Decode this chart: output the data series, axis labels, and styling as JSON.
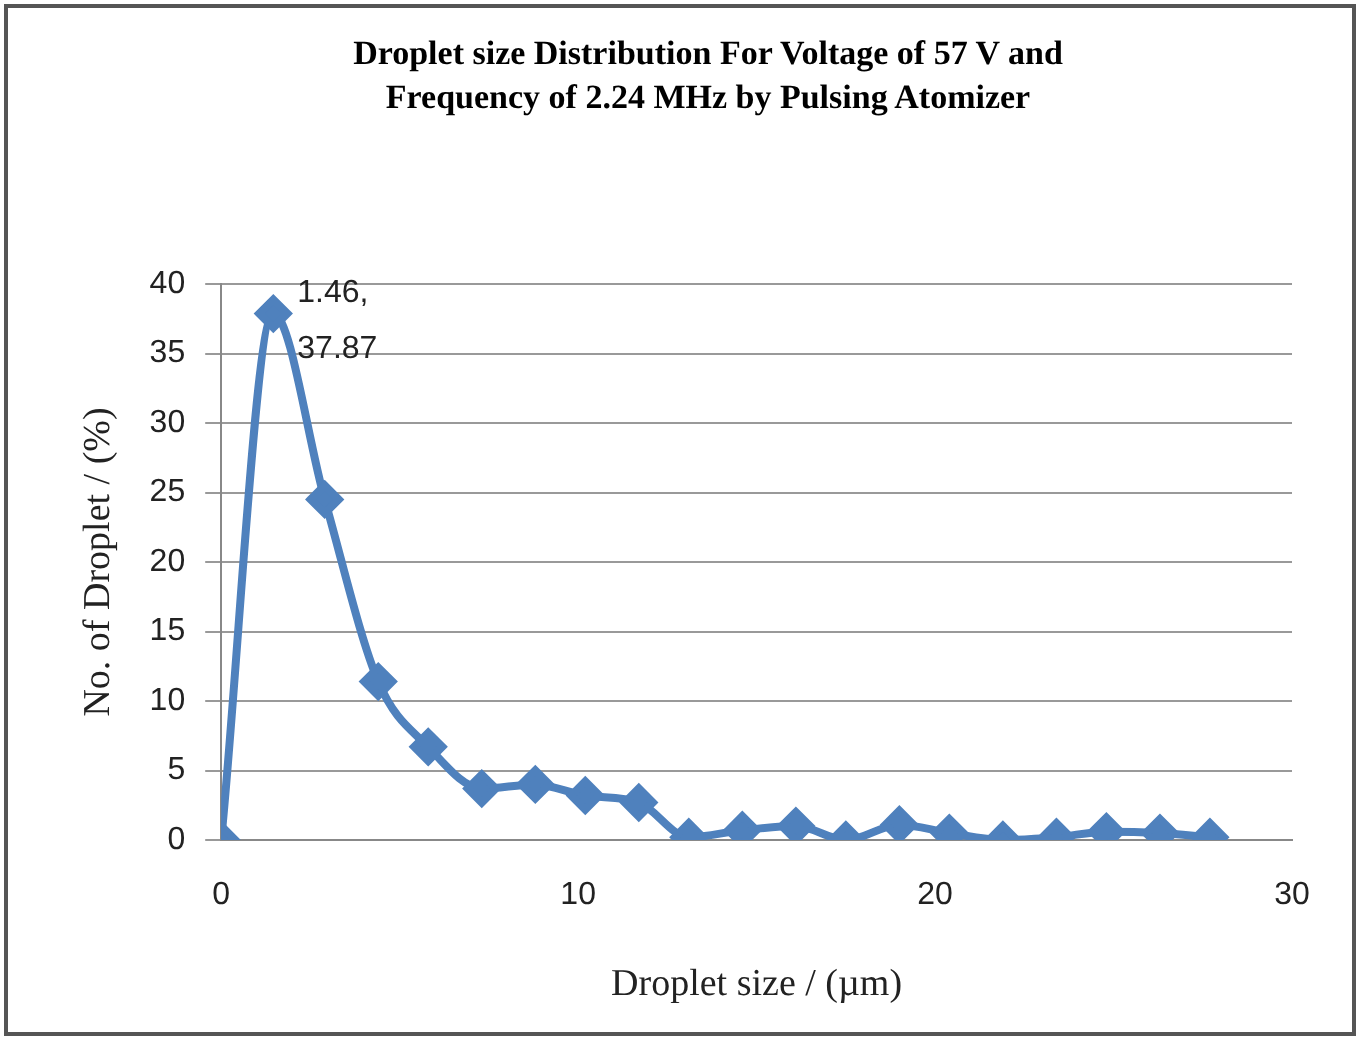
{
  "chart_data": {
    "type": "line",
    "title": "Droplet size Distribution For Voltage of 57 V and Frequency of 2.24 MHz by Pulsing Atomizer",
    "xlabel": "Droplet size / (µm)",
    "ylabel": "No. of Droplet / (%)",
    "x": [
      0,
      1.46,
      2.9,
      4.4,
      5.8,
      7.3,
      8.8,
      10.2,
      11.7,
      13.1,
      14.6,
      16.1,
      17.5,
      19.0,
      20.4,
      21.9,
      23.4,
      24.8,
      26.3,
      27.7
    ],
    "series": [
      {
        "color": "#4f81bd",
        "values": [
          0,
          37.87,
          24.5,
          11.4,
          6.7,
          3.7,
          4.0,
          3.2,
          2.7,
          0.2,
          0.7,
          1.0,
          0,
          1.1,
          0.5,
          0,
          0.2,
          0.6,
          0.5,
          0.2
        ]
      }
    ],
    "xlim": [
      0,
      30
    ],
    "xticks": [
      0,
      10,
      20,
      30
    ],
    "ylim": [
      0,
      40
    ],
    "yticks": [
      0,
      5,
      10,
      15,
      20,
      25,
      30,
      35,
      40
    ],
    "annotations": [
      {
        "text": "1.46, 37.87",
        "x": 1.46,
        "y": 37.87
      }
    ],
    "grid": "y",
    "legend": false,
    "marker": "diamond",
    "line_style": "solid"
  }
}
